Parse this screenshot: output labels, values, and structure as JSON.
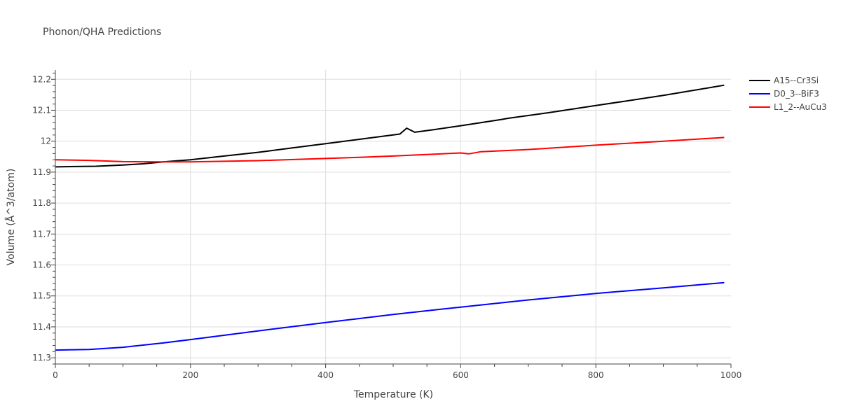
{
  "chart_data": {
    "type": "line",
    "title": "Phonon/QHA Predictions",
    "xlabel": "Temperature (K)",
    "ylabel": "Volume (Å^3/atom)",
    "xlim": [
      0,
      1000
    ],
    "ylim": [
      11.28,
      12.23
    ],
    "xticks": [
      0,
      200,
      400,
      600,
      800,
      1000
    ],
    "xtick_labels": [
      "0",
      "200",
      "400",
      "600",
      "800",
      "1000"
    ],
    "yticks": [
      11.3,
      11.4,
      11.5,
      11.6,
      11.7,
      11.8,
      11.9,
      12.0,
      12.1,
      12.2
    ],
    "ytick_labels": [
      "11.3",
      "11.4",
      "11.5",
      "11.6",
      "11.7",
      "11.8",
      "11.9",
      "12",
      "12.1",
      "12.2"
    ],
    "grid": true,
    "legend_position": "top-right",
    "series": [
      {
        "name": "A15--Cr3Si",
        "color": "#000000",
        "x": [
          0,
          30,
          60,
          100,
          130,
          160,
          200,
          250,
          300,
          350,
          400,
          450,
          510,
          520,
          532,
          560,
          600,
          660,
          670,
          730,
          800,
          900,
          990
        ],
        "y": [
          11.917,
          11.918,
          11.919,
          11.923,
          11.927,
          11.933,
          11.94,
          11.952,
          11.964,
          11.978,
          11.992,
          12.006,
          12.023,
          12.042,
          12.029,
          12.037,
          12.05,
          12.07,
          12.074,
          12.092,
          12.115,
          12.148,
          12.181
        ]
      },
      {
        "name": "D0_3--BiF3",
        "color": "#0000ff",
        "x": [
          0,
          20,
          50,
          100,
          160,
          200,
          300,
          400,
          500,
          600,
          700,
          800,
          900,
          990
        ],
        "y": [
          11.325,
          11.326,
          11.327,
          11.334,
          11.348,
          11.359,
          11.387,
          11.414,
          11.44,
          11.464,
          11.487,
          11.508,
          11.526,
          11.543
        ]
      },
      {
        "name": "L1_2--AuCu3",
        "color": "#ff0000",
        "x": [
          0,
          50,
          100,
          150,
          200,
          300,
          400,
          450,
          500,
          600,
          612,
          630,
          700,
          800,
          900,
          990
        ],
        "y": [
          11.94,
          11.938,
          11.934,
          11.933,
          11.933,
          11.937,
          11.944,
          11.948,
          11.952,
          11.962,
          11.959,
          11.966,
          11.973,
          11.987,
          12.0,
          12.012
        ]
      }
    ]
  }
}
